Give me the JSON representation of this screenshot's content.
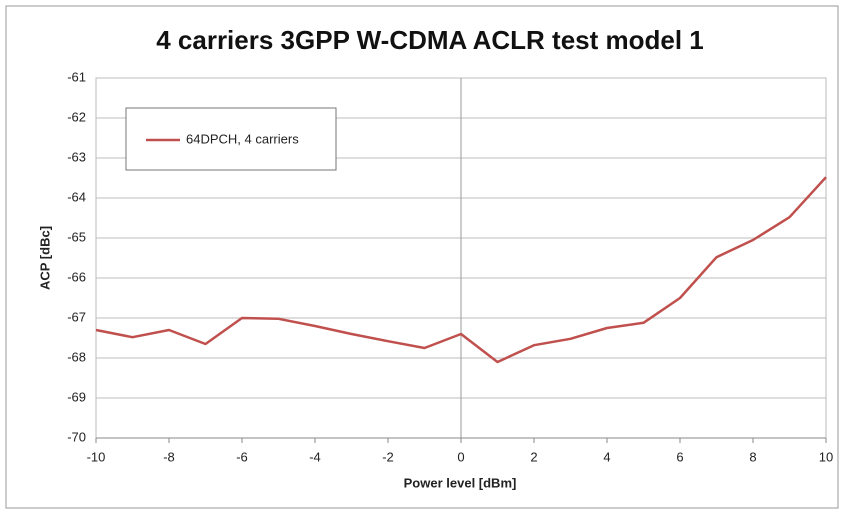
{
  "chart_data": {
    "type": "line",
    "title": "4 carriers 3GPP W-CDMA ACLR test model 1",
    "x_label": "Power level [dBm]",
    "y_label": "ACP [dBc]",
    "x": [
      -10,
      -9,
      -8,
      -7,
      -6,
      -5,
      -4,
      -3,
      -2,
      -1,
      0,
      1,
      2,
      3,
      4,
      5,
      6,
      7,
      8,
      9,
      10
    ],
    "series": [
      {
        "name": "64DPCH, 4 carriers",
        "color": "#c0504d",
        "values": [
          -67.3,
          -67.48,
          -67.3,
          -67.65,
          -67.0,
          -67.02,
          -67.2,
          -67.4,
          -67.58,
          -67.75,
          -67.4,
          -68.1,
          -67.68,
          -67.52,
          -67.25,
          -67.12,
          -66.5,
          -65.48,
          -65.05,
          -64.48,
          -63.48
        ]
      }
    ],
    "xlim": [
      -10,
      10
    ],
    "xticks": [
      -10,
      -8,
      -6,
      -4,
      -2,
      0,
      2,
      4,
      6,
      8,
      10
    ],
    "ylim": [
      -70,
      -61
    ],
    "yticks": [
      -70,
      -69,
      -68,
      -67,
      -66,
      -65,
      -64,
      -63,
      -62,
      -61
    ],
    "grid": true,
    "legend": "upper left"
  }
}
